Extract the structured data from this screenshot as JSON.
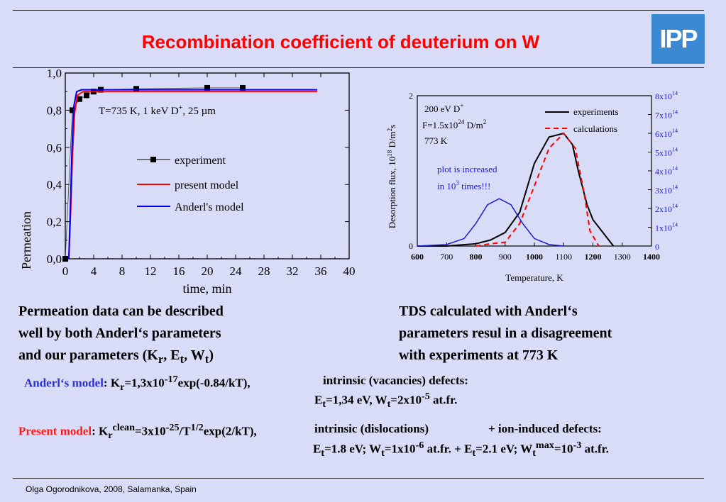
{
  "title": "Recombination coefficient of deuterium on W",
  "logo_text": "IPP",
  "left_chart": {
    "chart_data": {
      "type": "line",
      "xlabel": "time, min",
      "ylabel": "Permeation",
      "xlim": [
        0,
        40
      ],
      "ylim": [
        0,
        1
      ],
      "x_ticks": [
        "0",
        "4",
        "8",
        "12",
        "16",
        "20",
        "24",
        "28",
        "32",
        "36",
        "40"
      ],
      "y_ticks": [
        "0,0",
        "0,2",
        "0,4",
        "0,6",
        "0,8",
        "1,0"
      ],
      "annotation": "T=735 K, 1 keV D+, 25 µm",
      "legend": [
        "experiment",
        "present model",
        "Anderl's model"
      ],
      "series": [
        {
          "name": "experiment",
          "x": [
            0,
            1,
            2,
            3,
            4,
            5,
            10,
            20,
            25
          ],
          "y": [
            0.0,
            0.8,
            0.86,
            0.88,
            0.9,
            0.91,
            0.915,
            0.92,
            0.92
          ]
        },
        {
          "name": "present model",
          "x": [
            0.5,
            0.8,
            1.0,
            1.3,
            1.7,
            2.5,
            4,
            6,
            10,
            20,
            35.5
          ],
          "y": [
            0.0,
            0.3,
            0.55,
            0.78,
            0.88,
            0.9,
            0.9,
            0.9,
            0.9,
            0.9,
            0.9
          ]
        },
        {
          "name": "Anderl's model",
          "x": [
            0.5,
            0.75,
            0.95,
            1.2,
            1.6,
            2.3,
            4,
            6,
            10,
            20,
            35.5
          ],
          "y": [
            0.0,
            0.32,
            0.6,
            0.82,
            0.9,
            0.91,
            0.91,
            0.91,
            0.91,
            0.91,
            0.91
          ]
        }
      ]
    },
    "annotation_parts": {
      "main": "T=735 K, 1 keV D",
      "sup": "+",
      "rest": ", 25 µm"
    }
  },
  "right_chart": {
    "chart_data": {
      "type": "line",
      "xlabel": "Temperature, K",
      "ylabel_parts": [
        "Desorption flux, 10",
        "18",
        " D/m",
        "2",
        "s"
      ],
      "xlim": [
        600,
        1400
      ],
      "ylim_left": [
        0,
        2
      ],
      "ylim_right": [
        0,
        800000000000000.0
      ],
      "x_ticks": [
        "600",
        "700",
        "800",
        "900",
        "1000",
        "1100",
        "1200",
        "1300",
        "1400"
      ],
      "y_ticks_left": [
        "0",
        "2"
      ],
      "y_ticks_right": [
        {
          "mant": "0",
          "exp": ""
        },
        {
          "mant": "1x10",
          "exp": "14"
        },
        {
          "mant": "2x10",
          "exp": "14"
        },
        {
          "mant": "3x10",
          "exp": "14"
        },
        {
          "mant": "4x10",
          "exp": "14"
        },
        {
          "mant": "5x10",
          "exp": "14"
        },
        {
          "mant": "6x10",
          "exp": "14"
        },
        {
          "mant": "7x10",
          "exp": "14"
        },
        {
          "mant": "8x10",
          "exp": "14"
        }
      ],
      "legend": [
        "experiments",
        "calculations"
      ],
      "info_lines": [
        {
          "main": "200 eV D",
          "sup": "+"
        },
        {
          "main": "F=1.5x10",
          "sup": "24",
          "rest": " D/m",
          "sup2": "2"
        },
        {
          "main": "773 K"
        }
      ],
      "note_lines": [
        {
          "main": "plot is increased"
        },
        {
          "main": "in 10",
          "sup": "3",
          "rest": " times!!!"
        }
      ],
      "series": [
        {
          "name": "experiments",
          "x": [
            600,
            700,
            800,
            850,
            900,
            950,
            1000,
            1050,
            1100,
            1130,
            1150,
            1180,
            1200,
            1270
          ],
          "y": [
            0,
            0,
            0.03,
            0.08,
            0.18,
            0.45,
            1.1,
            1.45,
            1.5,
            1.35,
            1.0,
            0.55,
            0.35,
            0.0
          ]
        },
        {
          "name": "calculations",
          "x": [
            800,
            850,
            900,
            950,
            1000,
            1050,
            1100,
            1140,
            1170,
            1190,
            1220
          ],
          "y": [
            0,
            0.03,
            0.05,
            0.3,
            0.8,
            1.3,
            1.5,
            1.3,
            0.7,
            0.2,
            0.0
          ]
        },
        {
          "name": "",
          "x": [
            600,
            700,
            760,
            800,
            840,
            880,
            920,
            960,
            1000,
            1050,
            1100
          ],
          "y": [
            0,
            0.02,
            0.1,
            0.3,
            0.55,
            0.63,
            0.55,
            0.3,
            0.1,
            0.02,
            0.0
          ]
        }
      ]
    }
  },
  "left_para": [
    "Permeation data can be described",
    "well  by both Anderl‘s parameters",
    "and our parameters (K"
  ],
  "left_para_tail": {
    "r": "r",
    "sep1": ", E",
    "t1": "t",
    "sep2": ", W",
    "t2": "t",
    "end": ")"
  },
  "right_para": [
    "TDS calculated with Anderl‘s",
    "parameters resul in a disagreement",
    "with experiments at 773 K"
  ],
  "anderl": {
    "label": "Anderl‘s model",
    "colon": ": K",
    "sub_r": "r",
    "eq": "=1,3x10",
    "exp": "-17",
    "tail": "exp(-0.84/kT),",
    "defects": "intrinsic (vacancies) defects:",
    "line2": {
      "e": "E",
      "t": "t",
      "v1": "=1,34 eV, W",
      "t2": "t",
      "v2": "=2x10",
      "exp": "-5",
      "end": " at.fr."
    }
  },
  "present": {
    "label": "Present model",
    "colon": ":  K",
    "sub_r": "r",
    "sup_clean": "clean",
    "eq": "=3x10",
    "exp": "-25",
    "slash": "/T",
    "exp2": "1/2",
    "tail": "exp(2/kT),",
    "defects": "intrinsic (dislocations)",
    "plus": "+  ion-induced defects:",
    "line2": {
      "a1": "E",
      "t1": "t",
      "a2": "=1.8 eV; W",
      "t2": "t",
      "a3": "=1x10",
      "e1": "-6",
      "a4": " at.fr.  +  E",
      "t3": "t",
      "a5": "=2.1 eV; W",
      "t4": "t",
      "sup_max": "max",
      "a6": "=10",
      "e2": "-3",
      "a7": " at.fr."
    }
  },
  "footer": "Olga Ogorodnikova, 2008, Salamanka, Spain"
}
